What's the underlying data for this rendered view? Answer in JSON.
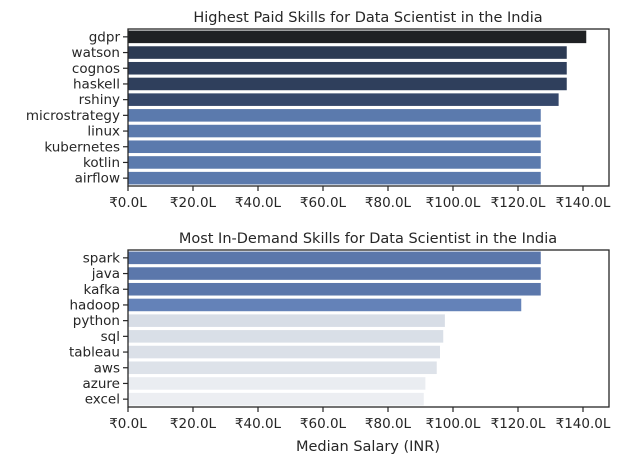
{
  "chart_data": [
    {
      "type": "bar",
      "orientation": "horizontal",
      "title": "Highest Paid Skills for Data Scientist in the India",
      "categories": [
        "gdpr",
        "watson",
        "cognos",
        "haskell",
        "rshiny",
        "microstrategy",
        "linux",
        "kubernetes",
        "kotlin",
        "airflow"
      ],
      "values": [
        14100000,
        13500000,
        13500000,
        13500000,
        13250000,
        12700000,
        12700000,
        12700000,
        12700000,
        12700000
      ],
      "colors": [
        "#1f2124",
        "#2c3a53",
        "#2f3f5c",
        "#2f3f5c",
        "#36486b",
        "#5b7aad",
        "#5b7aad",
        "#5b7aad",
        "#5b7aad",
        "#5b7aad"
      ],
      "xlabel": "",
      "ylabel": "",
      "xlim": [
        0,
        14800000
      ],
      "xticks": [
        0,
        2000000,
        4000000,
        6000000,
        8000000,
        10000000,
        12000000,
        14000000
      ],
      "xtick_labels": [
        "₹0.0L",
        "₹20.0L",
        "₹40.0L",
        "₹60.0L",
        "₹80.0L",
        "₹100.0L",
        "₹120.0L",
        "₹140.0L"
      ],
      "grid": false,
      "legend": "none"
    },
    {
      "type": "bar",
      "orientation": "horizontal",
      "title": "Most In-Demand Skills for Data Scientist in the India",
      "categories": [
        "spark",
        "java",
        "kafka",
        "hadoop",
        "python",
        "sql",
        "tableau",
        "aws",
        "azure",
        "excel"
      ],
      "values": [
        12700000,
        12700000,
        12700000,
        12100000,
        9750000,
        9700000,
        9600000,
        9500000,
        9150000,
        9100000
      ],
      "colors": [
        "#5b77ab",
        "#5b77ab",
        "#5b77ab",
        "#6482b8",
        "#d7dde6",
        "#d9dfe7",
        "#dbe0e8",
        "#dde2e9",
        "#eaedf1",
        "#eceef2"
      ],
      "xlabel": "Median Salary (INR)",
      "ylabel": "",
      "xlim": [
        0,
        14800000
      ],
      "xticks": [
        0,
        2000000,
        4000000,
        6000000,
        8000000,
        10000000,
        12000000,
        14000000
      ],
      "xtick_labels": [
        "₹0.0L",
        "₹20.0L",
        "₹40.0L",
        "₹60.0L",
        "₹80.0L",
        "₹100.0L",
        "₹120.0L",
        "₹140.0L"
      ],
      "grid": false,
      "legend": "none"
    }
  ]
}
